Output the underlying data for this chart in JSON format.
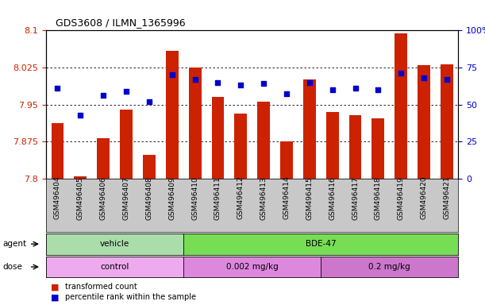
{
  "title": "GDS3608 / ILMN_1365996",
  "samples": [
    "GSM496404",
    "GSM496405",
    "GSM496406",
    "GSM496407",
    "GSM496408",
    "GSM496409",
    "GSM496410",
    "GSM496411",
    "GSM496412",
    "GSM496413",
    "GSM496414",
    "GSM496415",
    "GSM496416",
    "GSM496417",
    "GSM496418",
    "GSM496419",
    "GSM496420",
    "GSM496421"
  ],
  "bar_values": [
    7.912,
    7.805,
    7.882,
    7.94,
    7.848,
    8.058,
    8.025,
    7.965,
    7.932,
    7.955,
    7.875,
    8.0,
    7.935,
    7.928,
    7.922,
    8.095,
    8.03,
    8.032
  ],
  "dot_values": [
    61,
    43,
    56,
    59,
    52,
    70,
    67,
    65,
    63,
    64,
    57,
    65,
    60,
    61,
    60,
    71,
    68,
    67
  ],
  "ymin": 7.8,
  "ymax": 8.1,
  "y2min": 0,
  "y2max": 100,
  "yticks": [
    7.8,
    7.875,
    7.95,
    8.025,
    8.1
  ],
  "ytick_labels": [
    "7.8",
    "7.875",
    "7.95",
    "8.025",
    "8.1"
  ],
  "y2ticks": [
    0,
    25,
    50,
    75,
    100
  ],
  "y2tick_labels": [
    "0",
    "25",
    "50",
    "75",
    "100%"
  ],
  "bar_color": "#cc2200",
  "dot_color": "#0000cc",
  "agent_groups": [
    {
      "label": "vehicle",
      "start": 0,
      "end": 6,
      "color": "#aaddaa"
    },
    {
      "label": "BDE-47",
      "start": 6,
      "end": 18,
      "color": "#77dd55"
    }
  ],
  "dose_groups": [
    {
      "label": "control",
      "start": 0,
      "end": 6,
      "color": "#eeaaee"
    },
    {
      "label": "0.002 mg/kg",
      "start": 6,
      "end": 12,
      "color": "#dd88dd"
    },
    {
      "label": "0.2 mg/kg",
      "start": 12,
      "end": 18,
      "color": "#cc77cc"
    }
  ],
  "legend_items": [
    {
      "label": "transformed count",
      "color": "#cc2200"
    },
    {
      "label": "percentile rank within the sample",
      "color": "#0000cc"
    }
  ],
  "axis_color_left": "#cc2200",
  "axis_color_right": "#0000cc",
  "grid_color": "#000000",
  "xtick_bg_color": "#c8c8c8",
  "background_color": "#ffffff"
}
